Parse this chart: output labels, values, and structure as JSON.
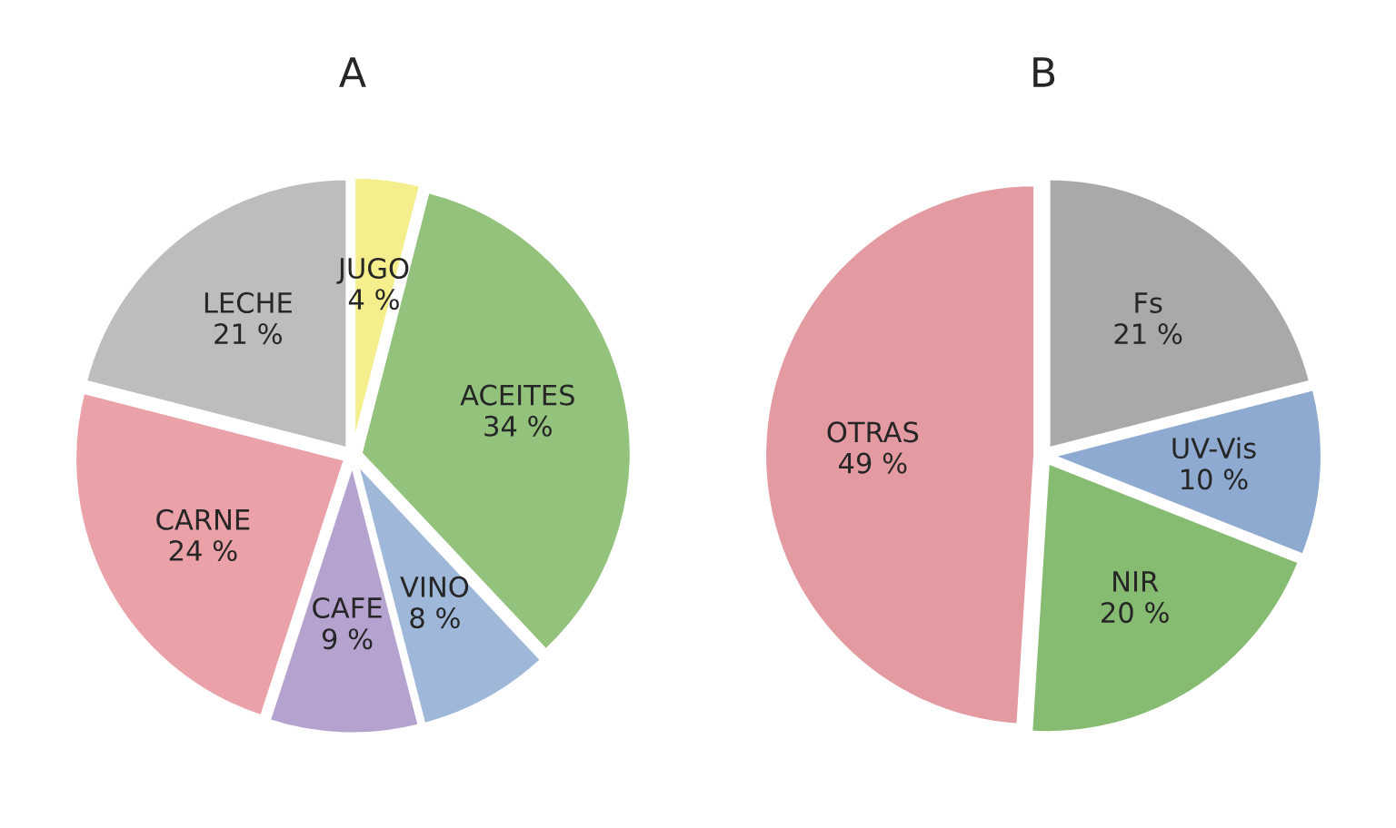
{
  "chart_data": [
    {
      "type": "pie",
      "title": "A",
      "categories": [
        "JUGO",
        "ACEITES",
        "VINO",
        "CAFE",
        "CARNE",
        "LECHE"
      ],
      "values": [
        4,
        34,
        8,
        9,
        24,
        21
      ],
      "value_labels": [
        "4 %",
        "34 %",
        "8 %",
        "9 %",
        "24 %",
        "21 %"
      ],
      "colors": [
        "#f4ef8c",
        "#92c27c",
        "#9fb7d8",
        "#b6a2cf",
        "#eaa2a8",
        "#bdbdbd"
      ]
    },
    {
      "type": "pie",
      "title": "B",
      "categories": [
        "Fs",
        "UV-Vis",
        "NIR",
        "OTRAS"
      ],
      "values": [
        21,
        10,
        20,
        49
      ],
      "value_labels": [
        "21 %",
        "10 %",
        "20 %",
        "49 %"
      ],
      "colors": [
        "#a9a9a9",
        "#8eaad0",
        "#86bb72",
        "#e39aa0"
      ]
    }
  ]
}
